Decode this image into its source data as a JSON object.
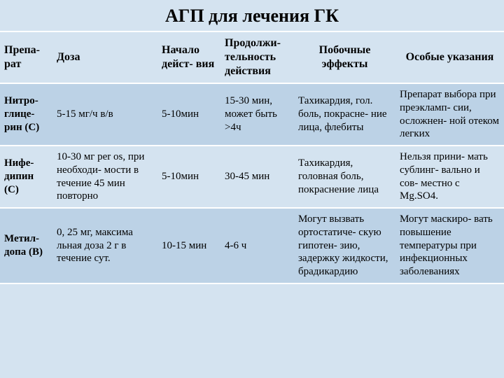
{
  "title": "АГП для лечения ГК",
  "colors": {
    "bg_light": "#d4e3f0",
    "bg_dark": "#bcd2e6",
    "divider": "#ffffff",
    "text": "#000000"
  },
  "header": {
    "c1": "Препа-\nрат",
    "c2": "Доза",
    "c3": "Начало\nдейст-\nвия",
    "c4": "Продолжи-\nтельность\nдействия",
    "c5": "Побочные\nэффекты",
    "c6": "Особые\nуказания"
  },
  "rows": [
    {
      "drug": "Нитро-\nглице-\nрин\n(С)",
      "dose": "5-15 мг/ч в/в",
      "onset": "5-10мин",
      "duration": "15-30 мин, может быть >4ч",
      "side": "Тахикардия, гол. боль, покрасне-\nние лица, флебиты",
      "note": "Препарат выбора при преэкламп-\nсии, осложнен-\nной отеком легких"
    },
    {
      "drug": "Нифе-\nдипин\n(С)",
      "dose": "10-30 мг per os, при необходи-\nмости в течение 45 мин повторно",
      "onset": "5-10мин",
      "duration": "30-45 мин",
      "side": "Тахикардия, головная боль, покраснение лица",
      "note": "Нельзя прини-\nмать сублинг-\nвально и сов-\nместно с Mg.SO4."
    },
    {
      "drug": "Метил-\nдопа\n(В)",
      "dose": "0, 25 мг, максима\nльная доза\n2 г в течение сут.",
      "onset": "10-15 мин",
      "duration": "4-6 ч",
      "side": "Могут вызвать ортостатиче-\nскую гипотен-\nзию, задержку жидкости, брадикардию",
      "note": "Могут маскиро-\nвать повышение температуры при инфекционных заболеваниях"
    }
  ]
}
